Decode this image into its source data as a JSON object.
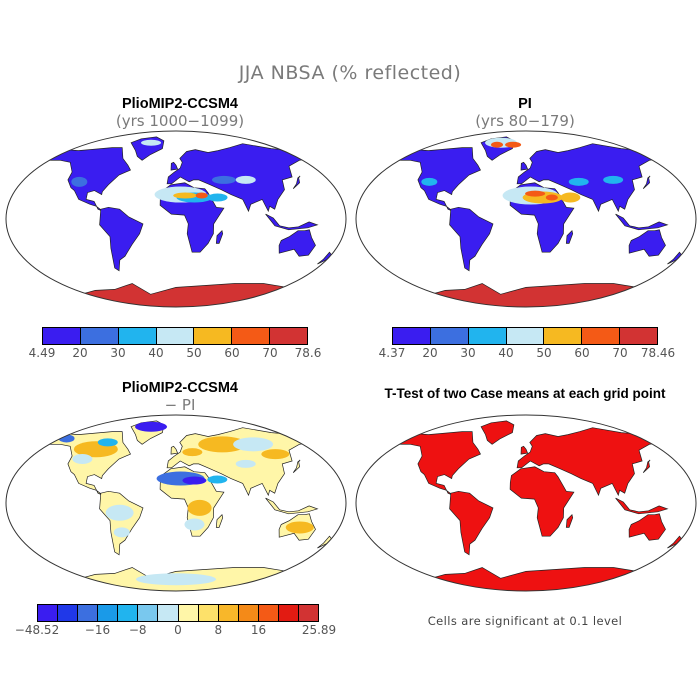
{
  "title": "JJA NBSA (% reflected)",
  "panels": {
    "top_left": {
      "title": "PlioMIP2-CCSM4",
      "subtitle": "(yrs 1000−1099)"
    },
    "top_right": {
      "title": "PI",
      "subtitle": "(yrs 80−179)"
    },
    "bottom_left": {
      "title": "PlioMIP2-CCSM4",
      "subtitle": "− PI"
    },
    "bottom_right": {
      "title": "T-Test of two Case means at each grid point",
      "note": "Cells are significant at 0.1 level"
    }
  },
  "colorbars": {
    "top_left": {
      "colors": [
        "#3a1df0",
        "#3c6fe0",
        "#21b4ee",
        "#c6e8f4",
        "#f6b921",
        "#f45a16",
        "#d23333"
      ],
      "labels": [
        "4.49",
        "20",
        "30",
        "40",
        "50",
        "60",
        "70",
        "78.6"
      ]
    },
    "top_right": {
      "colors": [
        "#3a1df0",
        "#3c6fe0",
        "#21b4ee",
        "#c6e8f4",
        "#f6b921",
        "#f45a16",
        "#d23333"
      ],
      "labels": [
        "4.37",
        "20",
        "30",
        "40",
        "50",
        "60",
        "70",
        "78.46"
      ]
    },
    "bottom_left": {
      "colors": [
        "#3a1df0",
        "#2038e8",
        "#3c6fe0",
        "#1a9ae8",
        "#21b4ee",
        "#79c8ee",
        "#c6e8f4",
        "#fff6a8",
        "#fde16a",
        "#f8b72a",
        "#f48a18",
        "#f45a16",
        "#e21b12",
        "#d23333"
      ],
      "labels": [
        "−48.52",
        "−16",
        "−8",
        "0",
        "8",
        "16",
        "25.89"
      ]
    }
  },
  "colors": {
    "low": "#3a1df0",
    "mid_low": "#3c6fe0",
    "cyan": "#21b4ee",
    "light": "#c6e8f4",
    "yellow": "#f6b921",
    "orange": "#f45a16",
    "high": "#d23333",
    "diff_pale": "#fff6a8",
    "ttest": "#ee1111",
    "grey_text": "#7a7a7a"
  }
}
